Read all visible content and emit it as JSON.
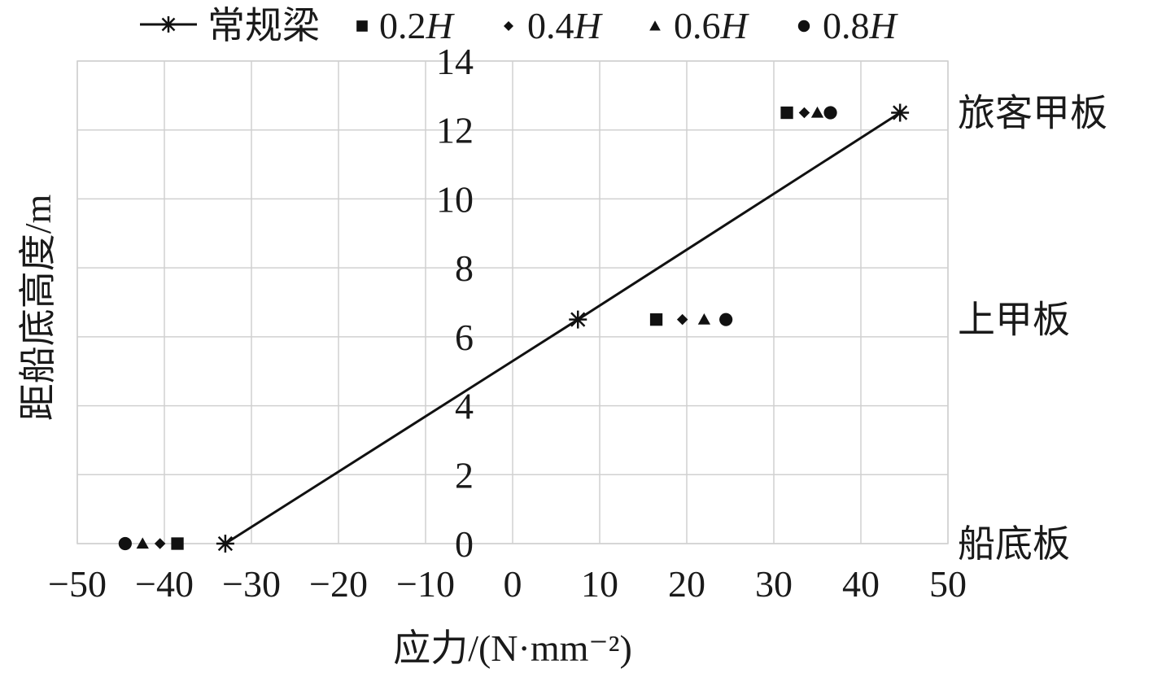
{
  "chart_data": {
    "type": "scatter",
    "xlabel": "应力/(N·mm⁻²)",
    "ylabel": "距船底高度/m",
    "xlim": [
      -50,
      50
    ],
    "ylim": [
      0,
      14
    ],
    "x_ticks": [
      -50,
      -40,
      -30,
      -20,
      -10,
      0,
      10,
      20,
      30,
      40,
      50
    ],
    "y_ticks": [
      0,
      2,
      4,
      6,
      8,
      10,
      12,
      14
    ],
    "x_tick_labels": [
      "−50",
      "−40",
      "−30",
      "−20",
      "−10",
      "0",
      "10",
      "20",
      "30",
      "40",
      "50"
    ],
    "y_tick_labels": [
      "0",
      "2",
      "4",
      "6",
      "8",
      "10",
      "12",
      "14"
    ],
    "grid": true,
    "legend_position": "top",
    "series": [
      {
        "name": "常规梁",
        "marker": "asterisk",
        "line": true,
        "color": "#111111",
        "points": [
          [
            -33,
            0
          ],
          [
            7.5,
            6.5
          ],
          [
            44.5,
            12.5
          ]
        ]
      },
      {
        "name": "0.2H",
        "marker": "square",
        "line": false,
        "color": "#111111",
        "points": [
          [
            -38.5,
            0
          ],
          [
            16.5,
            6.5
          ],
          [
            31.5,
            12.5
          ]
        ]
      },
      {
        "name": "0.4H",
        "marker": "diamond",
        "line": false,
        "color": "#111111",
        "points": [
          [
            -40.5,
            0
          ],
          [
            19.5,
            6.5
          ],
          [
            33.5,
            12.5
          ]
        ]
      },
      {
        "name": "0.6H",
        "marker": "triangle",
        "line": false,
        "color": "#111111",
        "points": [
          [
            -42.5,
            0
          ],
          [
            22,
            6.5
          ],
          [
            35,
            12.5
          ]
        ]
      },
      {
        "name": "0.8H",
        "marker": "circle",
        "line": false,
        "color": "#111111",
        "points": [
          [
            -44.5,
            0
          ],
          [
            24.5,
            6.5
          ],
          [
            36.5,
            12.5
          ]
        ]
      }
    ],
    "legend_items": [
      {
        "prefix": "常规梁",
        "italic": ""
      },
      {
        "prefix": "0.2",
        "italic": "H"
      },
      {
        "prefix": "0.4",
        "italic": "H"
      },
      {
        "prefix": "0.6",
        "italic": "H"
      },
      {
        "prefix": "0.8",
        "italic": "H"
      }
    ],
    "right_labels": [
      {
        "text": "旅客甲板",
        "y": 12.5
      },
      {
        "text": "上甲板",
        "y": 6.5
      },
      {
        "text": "船底板",
        "y": 0
      }
    ]
  }
}
